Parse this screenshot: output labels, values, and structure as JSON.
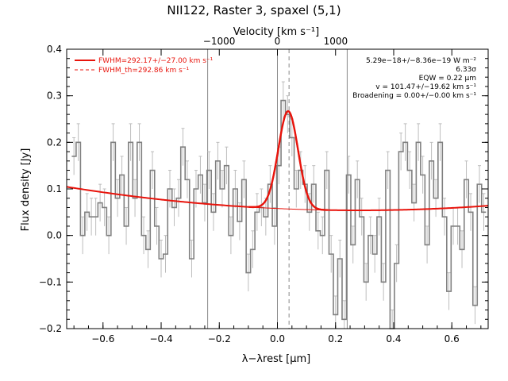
{
  "chart_data": {
    "type": "line",
    "title": "NII122, Raster 3, spaxel (5,1)",
    "xlabel": "λ−λrest [μm]",
    "ylabel": "Flux density [Jy]",
    "top_xlabel": "Velocity [km s⁻¹]",
    "xlim": [
      -0.725,
      0.725
    ],
    "ylim": [
      -0.2,
      0.4
    ],
    "x_ticks": [
      -0.6,
      -0.4,
      -0.2,
      0.0,
      0.2,
      0.4,
      0.6
    ],
    "x_tick_labels": [
      "−0.6",
      "−0.4",
      "−0.2",
      "0.0",
      "0.2",
      "0.4",
      "0.6"
    ],
    "y_ticks": [
      -0.2,
      -0.1,
      0.0,
      0.1,
      0.2,
      0.3,
      0.4
    ],
    "y_tick_labels": [
      "−0.2",
      "−0.1",
      "0.0",
      "0.1",
      "0.2",
      "0.3",
      "0.4"
    ],
    "top_ticks": [
      -1000,
      0,
      1000
    ],
    "top_tick_labels": [
      "−1000",
      "0",
      "1000"
    ],
    "top_ticks_lambda": [
      -0.2005,
      0.0,
      0.2005
    ],
    "grid": false,
    "legend_position": "top-left",
    "legend": [
      {
        "label": "FWHM=292.17+/−27.00 km s⁻¹",
        "style": "solid",
        "color": "#e8140c"
      },
      {
        "label": "FWHM_th=292.86 km s⁻¹",
        "style": "dashed",
        "color": "#e8140c"
      }
    ],
    "annotations": [
      "5.29e−18+/−8.36e−19 W m⁻²",
      "6.33σ",
      "EQW = 0.22 μm",
      "v = 101.47+/−19.62 km s⁻¹",
      "Broadening = 0.00+/−0.00 km s⁻¹"
    ],
    "vertical_lines": [
      {
        "x": -0.24,
        "style": "solid",
        "color": "#888888"
      },
      {
        "x": 0.0,
        "style": "solid",
        "color": "#888888"
      },
      {
        "x": 0.04,
        "style": "dashed",
        "color": "#888888"
      },
      {
        "x": 0.24,
        "style": "solid",
        "color": "#888888"
      }
    ],
    "spectrum": {
      "style": "step",
      "color": "#808080",
      "x": [
        -0.7,
        -0.685,
        -0.67,
        -0.655,
        -0.64,
        -0.625,
        -0.61,
        -0.595,
        -0.58,
        -0.565,
        -0.55,
        -0.535,
        -0.52,
        -0.505,
        -0.49,
        -0.475,
        -0.46,
        -0.445,
        -0.43,
        -0.415,
        -0.4,
        -0.385,
        -0.37,
        -0.355,
        -0.34,
        -0.325,
        -0.31,
        -0.295,
        -0.28,
        -0.265,
        -0.25,
        -0.235,
        -0.22,
        -0.205,
        -0.19,
        -0.175,
        -0.16,
        -0.145,
        -0.13,
        -0.115,
        -0.1,
        -0.085,
        -0.07,
        -0.055,
        -0.04,
        -0.025,
        -0.01,
        0.005,
        0.02,
        0.035,
        0.05,
        0.065,
        0.08,
        0.095,
        0.11,
        0.125,
        0.14,
        0.155,
        0.17,
        0.185,
        0.2,
        0.215,
        0.23,
        0.245,
        0.26,
        0.275,
        0.29,
        0.305,
        0.32,
        0.335,
        0.35,
        0.365,
        0.38,
        0.395,
        0.41,
        0.425,
        0.44,
        0.455,
        0.47,
        0.485,
        0.5,
        0.515,
        0.53,
        0.545,
        0.56,
        0.575,
        0.59,
        0.605,
        0.62,
        0.635,
        0.65,
        0.665,
        0.68,
        0.695,
        0.71
      ],
      "y": [
        0.17,
        0.2,
        0.0,
        0.05,
        0.04,
        0.04,
        0.07,
        0.06,
        0.0,
        0.2,
        0.08,
        0.13,
        0.02,
        0.2,
        0.08,
        0.2,
        0.0,
        -0.03,
        0.14,
        0.02,
        -0.05,
        -0.04,
        0.1,
        0.06,
        0.08,
        0.19,
        0.12,
        -0.05,
        0.1,
        0.13,
        0.07,
        0.14,
        0.05,
        0.16,
        0.1,
        0.15,
        0.0,
        0.1,
        0.03,
        0.12,
        -0.08,
        -0.03,
        0.05,
        0.06,
        0.04,
        0.11,
        0.02,
        0.15,
        0.29,
        0.26,
        0.21,
        0.1,
        0.14,
        0.11,
        0.05,
        0.11,
        0.01,
        0.0,
        0.14,
        -0.04,
        -0.17,
        -0.05,
        -0.18,
        0.13,
        -0.02,
        0.12,
        0.04,
        -0.1,
        0.0,
        -0.04,
        0.04,
        -0.1,
        0.14,
        -0.2,
        -0.06,
        0.18,
        0.2,
        0.14,
        0.07,
        0.2,
        0.13,
        -0.02,
        0.16,
        0.08,
        0.2,
        0.04,
        -0.12,
        0.02,
        0.02,
        -0.03,
        0.12,
        0.05,
        -0.15,
        0.11,
        0.05
      ],
      "error": 0.04
    },
    "fit": {
      "color": "#e8140c",
      "baseline": {
        "quad_center": 0.28,
        "quad_coeff": 0.05,
        "offset": 0.054
      },
      "gaussian": {
        "amplitude": 0.21,
        "center": 0.037,
        "sigma": 0.034
      }
    }
  }
}
